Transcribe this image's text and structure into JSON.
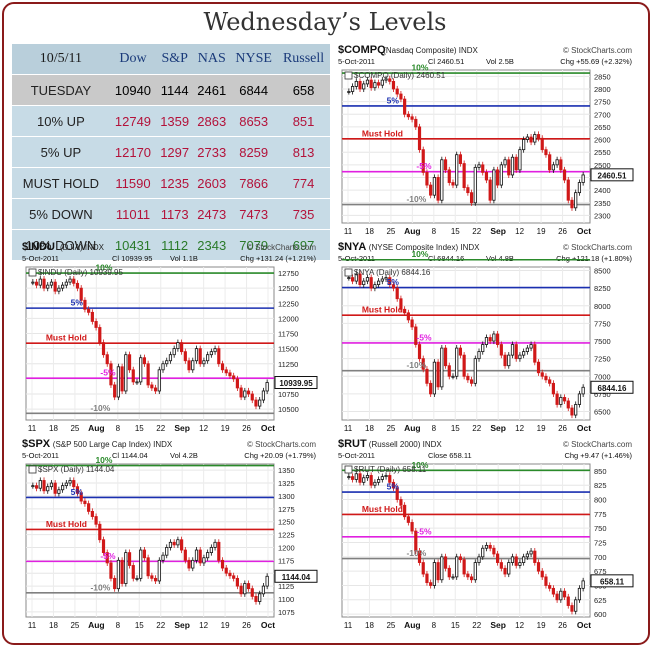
{
  "page": {
    "title": "Wednesday’s Levels"
  },
  "table": {
    "date": "10/5/11",
    "columns": [
      "Dow",
      "S&P",
      "NAS",
      "NYSE",
      "Russell"
    ],
    "rows": [
      {
        "label": "TUESDAY",
        "values": [
          "10940",
          "1144",
          "2461",
          "6844",
          "658"
        ],
        "color": "#000000",
        "bg": "#c9c9c9"
      },
      {
        "label": "10% UP",
        "values": [
          "12749",
          "1359",
          "2863",
          "8653",
          "851"
        ],
        "color": "#b3123a",
        "bg": "#c7dbe6"
      },
      {
        "label": "5% UP",
        "values": [
          "12170",
          "1297",
          "2733",
          "8259",
          "813"
        ],
        "color": "#b3123a",
        "bg": "#c7dbe6"
      },
      {
        "label": "MUST HOLD",
        "values": [
          "11590",
          "1235",
          "2603",
          "7866",
          "774"
        ],
        "color": "#b3123a",
        "bg": "#c7dbe6"
      },
      {
        "label": "5% DOWN",
        "values": [
          "11011",
          "1173",
          "2473",
          "7473",
          "735"
        ],
        "color": "#b3123a",
        "bg": "#c7dbe6"
      },
      {
        "label": "10% DOWN",
        "values": [
          "10431",
          "1112",
          "2343",
          "7079",
          "697"
        ],
        "color": "#2a7a2a",
        "bg": "#c7dbe6"
      }
    ]
  },
  "chart_data": [
    {
      "id": "compq",
      "type": "candlestick",
      "title": "$COMPQ",
      "subtitle": "(Nasdaq Composite) INDX",
      "source": "© StockCharts.com",
      "info_date": "5-Oct-2011",
      "info_ci": "Cl 2460.51",
      "info_vol": "Vol 2.5B",
      "info_chg": "Chg +55.69 (+2.32%)",
      "legend": "$COMPQ (Daily) 2460.51",
      "ylim": [
        2270,
        2875
      ],
      "yticks": [
        2300,
        2350,
        2400,
        2450,
        2500,
        2550,
        2600,
        2650,
        2700,
        2750,
        2800,
        2850
      ],
      "last": 2460.51,
      "last_label": "2460.51",
      "xticks": [
        "11",
        "18",
        "25",
        "Aug",
        "8",
        "15",
        "22",
        "Sep",
        "12",
        "19",
        "26",
        "Oct"
      ],
      "levels": [
        {
          "label": "10%",
          "value": 2863,
          "color": "#2a8a2a"
        },
        {
          "label": "5%",
          "value": 2733,
          "color": "#1a2fb0"
        },
        {
          "label": "Must Hold",
          "value": 2603,
          "color": "#d01818"
        },
        {
          "label": "-5%",
          "value": 2473,
          "color": "#e020e0"
        },
        {
          "label": "-10%",
          "value": 2343,
          "color": "#808080"
        }
      ],
      "closes": [
        2790,
        2810,
        2830,
        2800,
        2820,
        2835,
        2805,
        2825,
        2815,
        2835,
        2840,
        2830,
        2800,
        2780,
        2760,
        2700,
        2690,
        2680,
        2650,
        2560,
        2470,
        2420,
        2380,
        2450,
        2360,
        2520,
        2480,
        2430,
        2420,
        2540,
        2505,
        2410,
        2390,
        2350,
        2490,
        2500,
        2470,
        2440,
        2360,
        2480,
        2420,
        2500,
        2520,
        2460,
        2530,
        2480,
        2560,
        2600,
        2610,
        2590,
        2620,
        2605,
        2560,
        2540,
        2480,
        2500,
        2520,
        2480,
        2440,
        2360,
        2330,
        2390,
        2430,
        2460
      ]
    },
    {
      "id": "indu",
      "type": "candlestick",
      "title": "$INDU",
      "subtitle": "(DJIA) INDX",
      "source": "© StockCharts.com",
      "info_date": "5-Oct-2011",
      "info_ci": "Cl 10939.95",
      "info_vol": "Vol 1.1B",
      "info_chg": "Chg +131.24 (+1.21%)",
      "legend": "$INDU (Daily) 10939.95",
      "ylim": [
        10320,
        12850
      ],
      "yticks": [
        10500,
        10750,
        11000,
        11250,
        11500,
        11750,
        12000,
        12250,
        12500,
        12750
      ],
      "last": 10939.95,
      "last_label": "10939.95",
      "xticks": [
        "11",
        "18",
        "25",
        "Aug",
        "8",
        "15",
        "22",
        "Sep",
        "12",
        "19",
        "26",
        "Oct"
      ],
      "levels": [
        {
          "label": "10%",
          "value": 12749,
          "color": "#2a8a2a"
        },
        {
          "label": "5%",
          "value": 12170,
          "color": "#1a2fb0"
        },
        {
          "label": "Must Hold",
          "value": 11590,
          "color": "#d01818"
        },
        {
          "label": "-5%",
          "value": 11011,
          "color": "#e020e0"
        },
        {
          "label": "-10%",
          "value": 10431,
          "color": "#808080"
        }
      ],
      "closes": [
        12600,
        12550,
        12650,
        12500,
        12550,
        12600,
        12450,
        12500,
        12550,
        12600,
        12650,
        12580,
        12500,
        12300,
        12150,
        12100,
        11950,
        11850,
        11600,
        11400,
        11250,
        10900,
        10700,
        11200,
        10800,
        11400,
        11150,
        10950,
        10950,
        11350,
        11250,
        10900,
        10850,
        10800,
        11150,
        11250,
        11300,
        11400,
        11500,
        11600,
        11450,
        11300,
        11150,
        11300,
        11500,
        11250,
        11300,
        11400,
        11450,
        11500,
        11250,
        11150,
        11100,
        11050,
        11000,
        10850,
        10700,
        10800,
        10750,
        10650,
        10550,
        10650,
        10800,
        10940
      ]
    },
    {
      "id": "nya",
      "type": "candlestick",
      "title": "$NYA",
      "subtitle": "(NYSE Composite Index) INDX",
      "source": "© StockCharts.com",
      "info_date": "5-Oct-2011",
      "info_ci": "Cl 6844.16",
      "info_vol": "Vol 4.8B",
      "info_chg": "Chg +121.18 (+1.80%)",
      "legend": "$NYA (Daily) 6844.16",
      "ylim": [
        6380,
        8550
      ],
      "yticks": [
        6500,
        6750,
        7000,
        7250,
        7500,
        7750,
        8000,
        8250,
        8500
      ],
      "last": 6844.16,
      "last_label": "6844.16",
      "xticks": [
        "11",
        "18",
        "25",
        "Aug",
        "8",
        "15",
        "22",
        "Sep",
        "12",
        "19",
        "26",
        "Oct"
      ],
      "levels": [
        {
          "label": "10%",
          "value": 8653,
          "color": "#2a8a2a"
        },
        {
          "label": "5%",
          "value": 8259,
          "color": "#1a2fb0"
        },
        {
          "label": "Must Hold",
          "value": 7866,
          "color": "#d01818"
        },
        {
          "label": "-5%",
          "value": 7473,
          "color": "#e020e0"
        },
        {
          "label": "-10%",
          "value": 7079,
          "color": "#808080"
        }
      ],
      "closes": [
        8400,
        8350,
        8450,
        8300,
        8350,
        8400,
        8250,
        8300,
        8350,
        8380,
        8400,
        8300,
        8250,
        8100,
        7950,
        7900,
        7800,
        7700,
        7450,
        7250,
        7100,
        6900,
        6750,
        7200,
        6850,
        7400,
        7150,
        7000,
        7000,
        7400,
        7300,
        7000,
        6950,
        6900,
        7250,
        7350,
        7450,
        7550,
        7500,
        7600,
        7450,
        7300,
        7150,
        7300,
        7450,
        7250,
        7300,
        7350,
        7400,
        7450,
        7200,
        7050,
        7000,
        6950,
        6900,
        6750,
        6600,
        6700,
        6650,
        6550,
        6450,
        6600,
        6750,
        6844
      ]
    },
    {
      "id": "spx",
      "type": "candlestick",
      "title": "$SPX",
      "subtitle": "(S&P 500 Large Cap Index) INDX",
      "source": "© StockCharts.com",
      "info_date": "5-Oct-2011",
      "info_ci": "Cl 1144.04",
      "info_vol": "Vol 4.2B",
      "info_chg": "Chg +20.09 (+1.79%)",
      "legend": "$SPX (Daily) 1144.04",
      "ylim": [
        1065,
        1362
      ],
      "yticks": [
        1075,
        1100,
        1125,
        1150,
        1175,
        1200,
        1225,
        1250,
        1275,
        1300,
        1325,
        1350
      ],
      "last": 1144.04,
      "last_label": "1144.04",
      "xticks": [
        "11",
        "18",
        "25",
        "Aug",
        "8",
        "15",
        "22",
        "Sep",
        "12",
        "19",
        "26",
        "Oct"
      ],
      "levels": [
        {
          "label": "10%",
          "value": 1359,
          "color": "#2a8a2a"
        },
        {
          "label": "5%",
          "value": 1297,
          "color": "#1a2fb0"
        },
        {
          "label": "Must Hold",
          "value": 1235,
          "color": "#d01818"
        },
        {
          "label": "-5%",
          "value": 1173,
          "color": "#e020e0"
        },
        {
          "label": "-10%",
          "value": 1112,
          "color": "#808080"
        }
      ],
      "closes": [
        1320,
        1315,
        1330,
        1310,
        1318,
        1325,
        1305,
        1312,
        1320,
        1325,
        1330,
        1318,
        1305,
        1290,
        1285,
        1270,
        1260,
        1245,
        1215,
        1190,
        1170,
        1140,
        1120,
        1175,
        1130,
        1190,
        1165,
        1140,
        1140,
        1195,
        1180,
        1145,
        1140,
        1135,
        1175,
        1185,
        1200,
        1210,
        1205,
        1215,
        1195,
        1175,
        1160,
        1175,
        1195,
        1170,
        1180,
        1190,
        1200,
        1210,
        1175,
        1160,
        1150,
        1145,
        1140,
        1125,
        1110,
        1130,
        1120,
        1105,
        1095,
        1110,
        1125,
        1144
      ]
    },
    {
      "id": "rut",
      "type": "candlestick",
      "title": "$RUT",
      "subtitle": "(Russell 2000) INDX",
      "source": "© StockCharts.com",
      "info_date": "5-Oct-2011",
      "info_ci": "Close 658.11",
      "info_vol": "",
      "info_chg": "Chg +9.47 (+1.46%)",
      "legend": "$RUT (Daily) 658.11",
      "ylim": [
        595,
        862
      ],
      "yticks": [
        600,
        625,
        650,
        675,
        700,
        725,
        750,
        775,
        800,
        825,
        850
      ],
      "last": 658.11,
      "last_label": "658.11",
      "xticks": [
        "11",
        "18",
        "25",
        "Aug",
        "8",
        "15",
        "22",
        "Sep",
        "12",
        "19",
        "26",
        "Oct"
      ],
      "levels": [
        {
          "label": "10%",
          "value": 851,
          "color": "#2a8a2a"
        },
        {
          "label": "5%",
          "value": 813,
          "color": "#1a2fb0"
        },
        {
          "label": "Must Hold",
          "value": 774,
          "color": "#d01818"
        },
        {
          "label": "-5%",
          "value": 735,
          "color": "#e020e0"
        },
        {
          "label": "-10%",
          "value": 697,
          "color": "#808080"
        }
      ],
      "closes": [
        840,
        835,
        845,
        830,
        838,
        842,
        825,
        830,
        835,
        840,
        842,
        830,
        820,
        800,
        790,
        770,
        760,
        745,
        710,
        690,
        670,
        655,
        650,
        690,
        660,
        700,
        680,
        665,
        665,
        700,
        695,
        670,
        665,
        660,
        690,
        700,
        715,
        720,
        715,
        705,
        690,
        680,
        670,
        690,
        700,
        685,
        690,
        700,
        705,
        710,
        690,
        675,
        665,
        650,
        645,
        635,
        625,
        640,
        630,
        615,
        605,
        625,
        645,
        658
      ]
    }
  ]
}
